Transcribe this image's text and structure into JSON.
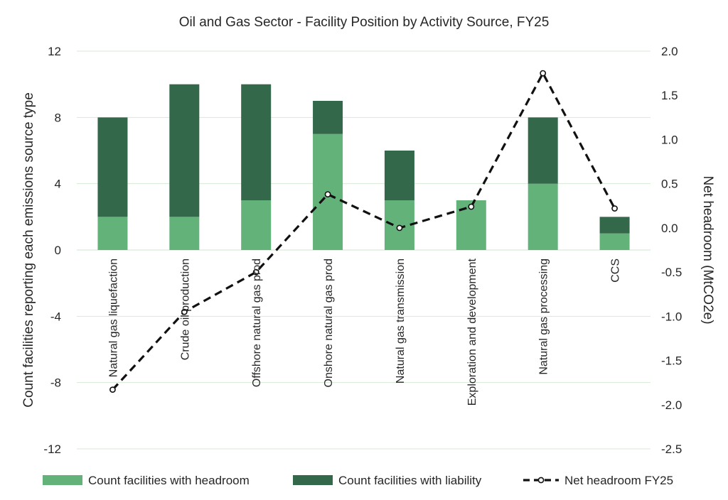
{
  "chart_data": {
    "type": "bar",
    "stacked": true,
    "title": "Oil and Gas Sector - Facility Position by Activity Source, FY25",
    "ylabel": "Count facilities reporting each emissions source type",
    "y2label": "Net headroom (MtCO2e)",
    "xlabel": "",
    "ylim": [
      -12,
      12
    ],
    "y2lim": [
      -2.5,
      2.0
    ],
    "yticks": [
      12,
      8,
      4,
      0,
      -4,
      -8,
      -12
    ],
    "y2ticks": [
      "2.0",
      "1.5",
      "1.0",
      "0.5",
      "0.0",
      "-0.5",
      "-1.0",
      "-1.5",
      "-2.0",
      "-2.5"
    ],
    "grid": true,
    "legend_position": "bottom",
    "categories": [
      "Natural gas liquefaction",
      "Crude oil production",
      "Offshore natural gas prod",
      "Onshore natural gas prod",
      "Natural gas transmission",
      "Exploration and development",
      "Natural gas processing",
      "CCS"
    ],
    "series": [
      {
        "name": "Count facilities with headroom",
        "kind": "bar",
        "axis": "left",
        "color": "#63b27a",
        "values": [
          2,
          2,
          3,
          7,
          3,
          3,
          4,
          1
        ]
      },
      {
        "name": "Count facilities with liability",
        "kind": "bar",
        "axis": "left",
        "color": "#33694a",
        "values": [
          6,
          8,
          7,
          2,
          3,
          0,
          4,
          1
        ]
      },
      {
        "name": "Net headroom FY25",
        "kind": "line",
        "axis": "right",
        "color": "#111111",
        "values": [
          -1.83,
          -0.95,
          -0.5,
          0.38,
          0.0,
          0.24,
          1.75,
          0.22
        ]
      }
    ]
  }
}
